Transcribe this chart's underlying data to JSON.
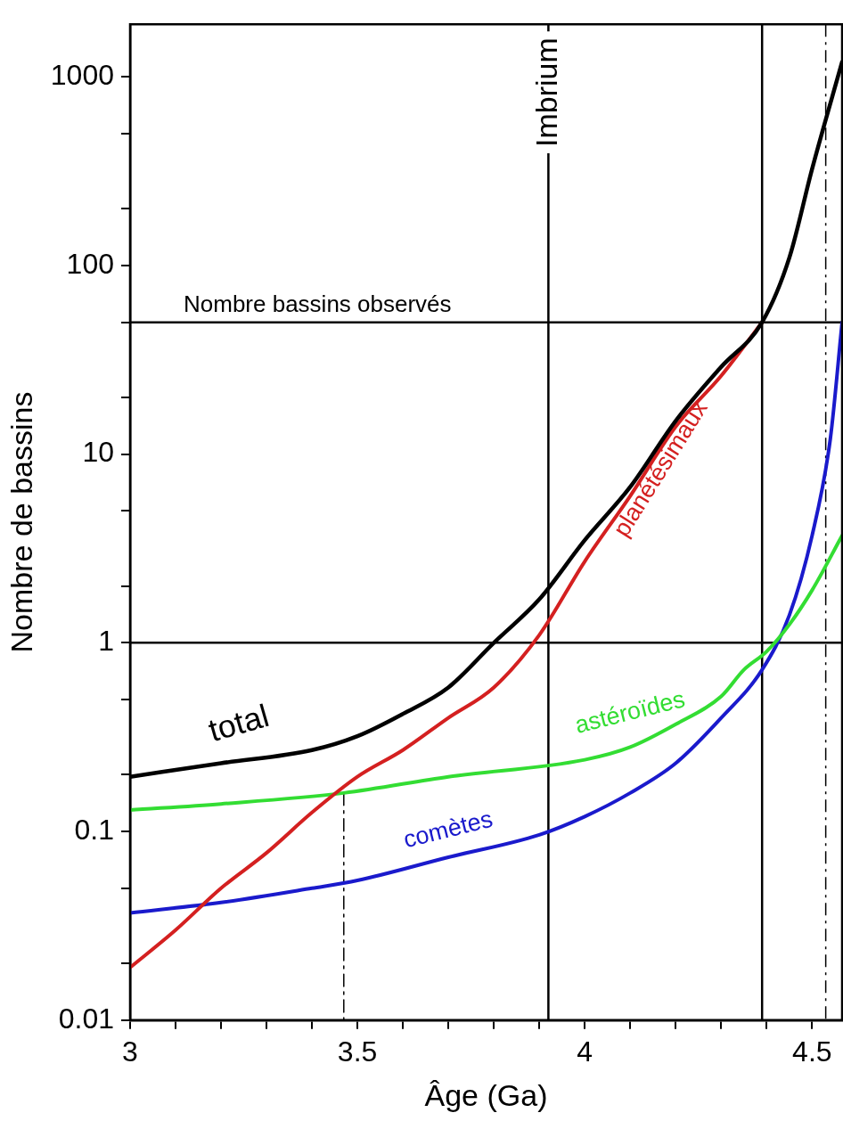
{
  "chart_data": {
    "type": "line",
    "xlabel": "Âge (Ga)",
    "ylabel": "Nombre de bassins",
    "log": "y",
    "grid": false,
    "legend": false,
    "marker": "none",
    "xlim": [
      3,
      4.566
    ],
    "ylim": [
      0.01,
      1900
    ],
    "xticks": [
      3,
      {
        "value": 3.1,
        "label": null
      },
      {
        "value": 3.2,
        "label": null
      },
      {
        "value": 3.3,
        "label": null
      },
      {
        "value": 3.4,
        "label": null
      },
      3.5,
      {
        "value": 3.6,
        "label": null
      },
      {
        "value": 3.7,
        "label": null
      },
      {
        "value": 3.8,
        "label": null
      },
      {
        "value": 3.9,
        "label": null
      },
      4,
      {
        "value": 4.1,
        "label": null
      },
      {
        "value": 4.2,
        "label": null
      },
      {
        "value": 4.3,
        "label": null
      },
      {
        "value": 4.4,
        "label": null
      },
      4.5
    ],
    "yticks": [
      0.01,
      {
        "value": 0.02,
        "label": null
      },
      {
        "value": 0.05,
        "label": null
      },
      0.1,
      {
        "value": 0.2,
        "label": null
      },
      {
        "value": 0.5,
        "label": null
      },
      1,
      {
        "value": 2,
        "label": null
      },
      {
        "value": 5,
        "label": null
      },
      10,
      {
        "value": 20,
        "label": null
      },
      {
        "value": 50,
        "label": null
      },
      100,
      {
        "value": 200,
        "label": null
      },
      {
        "value": 500,
        "label": null
      },
      1000
    ],
    "series": [
      {
        "name": "total",
        "color": "#000000",
        "x": [
          3,
          3.2,
          3.4,
          3.5,
          3.6,
          3.7,
          3.8,
          3.9,
          4,
          4.1,
          4.2,
          4.3,
          4.39,
          4.45,
          4.5,
          4.566
        ],
        "values": [
          0.195,
          0.23,
          0.27,
          0.32,
          0.42,
          0.58,
          1,
          1.7,
          3.5,
          6.7,
          15,
          29,
          50,
          110,
          325,
          1200
        ]
      },
      {
        "name": "planétésimaux",
        "color": "#d42020",
        "x": [
          3,
          3.1,
          3.2,
          3.3,
          3.4,
          3.5,
          3.6,
          3.7,
          3.8,
          3.9,
          4,
          4.1,
          4.2,
          4.3,
          4.39
        ],
        "values": [
          0.019,
          0.03,
          0.05,
          0.077,
          0.126,
          0.195,
          0.27,
          0.4,
          0.58,
          1.1,
          2.7,
          6,
          14,
          26,
          50
        ]
      },
      {
        "name": "astéroïdes",
        "color": "#33dd33",
        "x": [
          3,
          3.2,
          3.47,
          3.7,
          4,
          4.1,
          4.2,
          4.3,
          4.35,
          4.4,
          4.45,
          4.5,
          4.566
        ],
        "values": [
          0.13,
          0.14,
          0.16,
          0.195,
          0.24,
          0.28,
          0.37,
          0.52,
          0.72,
          0.9,
          1.25,
          1.9,
          3.7
        ]
      },
      {
        "name": "comètes",
        "color": "#1a1acc",
        "x": [
          3,
          3.2,
          3.4,
          3.5,
          3.7,
          3.9,
          4,
          4.1,
          4.2,
          4.3,
          4.39,
          4.45,
          4.5,
          4.54,
          4.566
        ],
        "values": [
          0.037,
          0.042,
          0.05,
          0.055,
          0.073,
          0.096,
          0.12,
          0.16,
          0.23,
          0.4,
          0.72,
          1.4,
          3.7,
          12,
          50
        ]
      },
      {
        "type": "line",
        "color": "#000000",
        "line_style": "dashed",
        "x": [
          3.47,
          3.47
        ],
        "values": [
          0.16,
          0.01
        ]
      }
    ],
    "ref_lines": [
      {
        "axis": "y",
        "value": 1,
        "color": "#000000"
      },
      {
        "axis": "y",
        "value": 50,
        "label": "Nombre bassins observés",
        "color": "#000000"
      },
      {
        "axis": "x",
        "value": 3.92,
        "label": "Imbrium",
        "color": "#000000"
      },
      {
        "axis": "x",
        "value": 4.39,
        "color": "#000000"
      },
      {
        "axis": "x",
        "value": 4.53,
        "color": "#000000",
        "line_style": "dashed"
      }
    ]
  }
}
